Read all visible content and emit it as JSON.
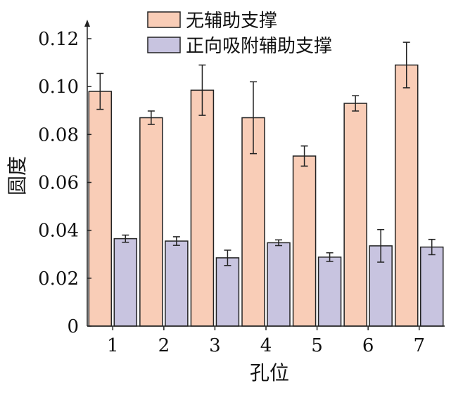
{
  "chart_data": {
    "type": "bar",
    "title": "",
    "xlabel": "孔位",
    "ylabel": "圆度",
    "categories": [
      "1",
      "2",
      "3",
      "4",
      "5",
      "6",
      "7"
    ],
    "ylim": [
      0,
      0.125
    ],
    "yticks": [
      "0",
      "0.02",
      "0.04",
      "0.06",
      "0.08",
      "0.10",
      "0.12"
    ],
    "ytick_values": [
      0,
      0.02,
      0.04,
      0.06,
      0.08,
      0.1,
      0.12
    ],
    "grid": false,
    "legend_position": "top",
    "series": [
      {
        "name": "无辅助支撑",
        "color": "#f9cdb7",
        "values": [
          0.098,
          0.087,
          0.0985,
          0.087,
          0.071,
          0.093,
          0.109
        ],
        "errors": [
          0.0075,
          0.0028,
          0.0105,
          0.015,
          0.0042,
          0.0032,
          0.0095
        ]
      },
      {
        "name": "正向吸附辅助支撑",
        "color": "#c8c4e0",
        "values": [
          0.0365,
          0.0355,
          0.0285,
          0.0348,
          0.0288,
          0.0335,
          0.033
        ],
        "errors": [
          0.0015,
          0.0018,
          0.0032,
          0.0012,
          0.0018,
          0.0068,
          0.0032
        ]
      }
    ]
  }
}
